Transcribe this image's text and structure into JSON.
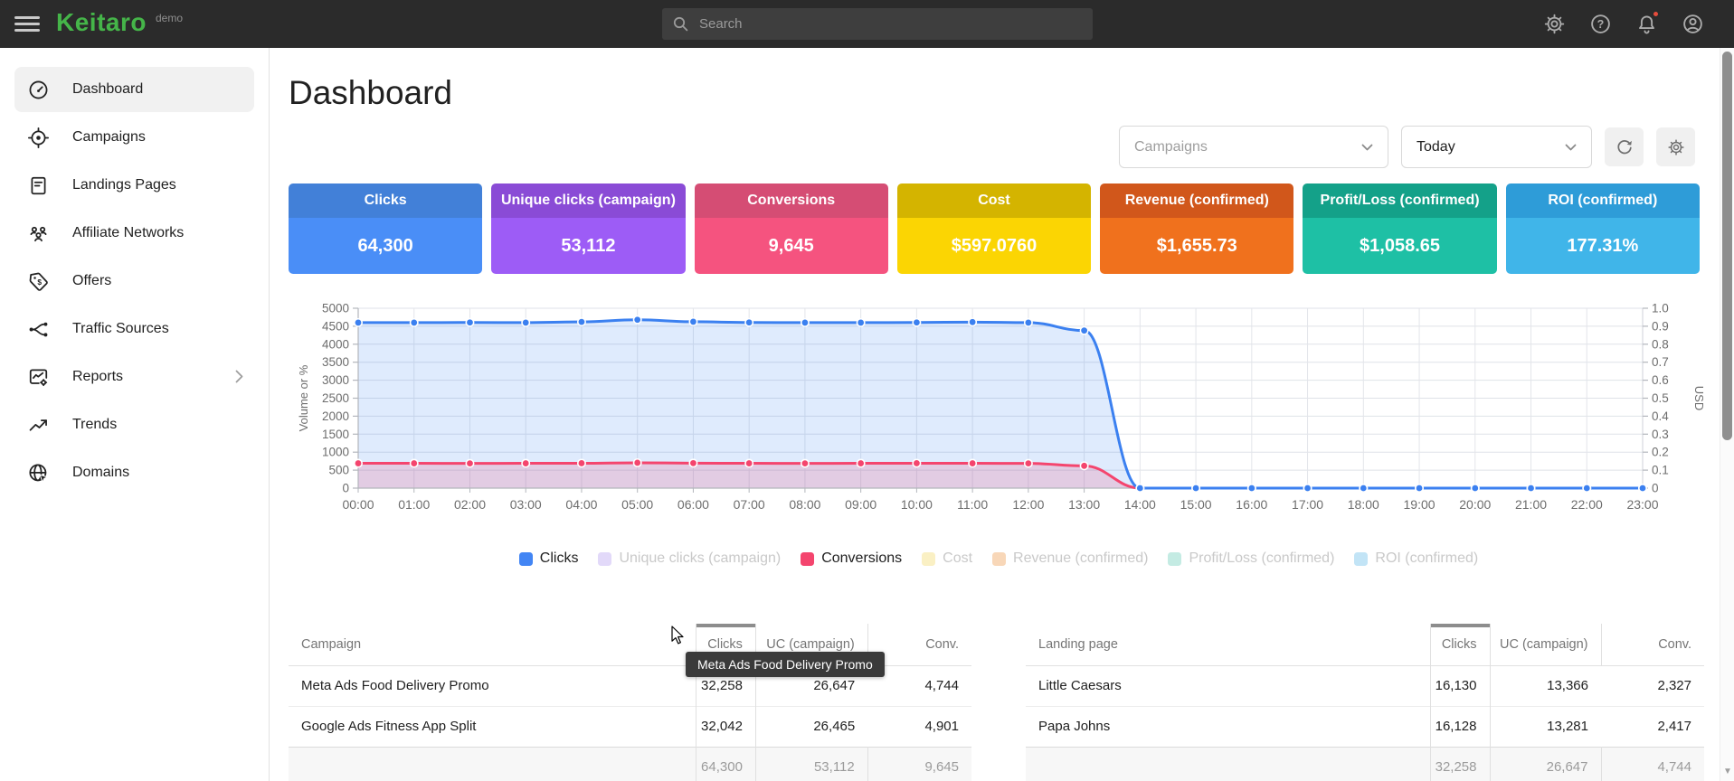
{
  "topbar": {
    "logo": "Keitaro",
    "env": "demo",
    "search_placeholder": "Search",
    "icons": [
      {
        "name": "settings-gear-icon",
        "badge": false
      },
      {
        "name": "help-icon",
        "badge": false
      },
      {
        "name": "notifications-bell-icon",
        "badge": true
      },
      {
        "name": "account-icon",
        "badge": false
      }
    ],
    "badge_color": "#e74c3c"
  },
  "sidebar": {
    "items": [
      {
        "label": "Dashboard",
        "icon": "gauge-icon",
        "active": true,
        "has_submenu": false
      },
      {
        "label": "Campaigns",
        "icon": "target-icon",
        "active": false,
        "has_submenu": false
      },
      {
        "label": "Landings Pages",
        "icon": "document-icon",
        "active": false,
        "has_submenu": false
      },
      {
        "label": "Affiliate Networks",
        "icon": "people-icon",
        "active": false,
        "has_submenu": false
      },
      {
        "label": "Offers",
        "icon": "tag-icon",
        "active": false,
        "has_submenu": false
      },
      {
        "label": "Traffic Sources",
        "icon": "split-icon",
        "active": false,
        "has_submenu": false
      },
      {
        "label": "Reports",
        "icon": "report-chart-icon",
        "active": false,
        "has_submenu": true
      },
      {
        "label": "Trends",
        "icon": "trend-up-icon",
        "active": false,
        "has_submenu": false
      },
      {
        "label": "Domains",
        "icon": "globe-icon",
        "active": false,
        "has_submenu": false
      }
    ]
  },
  "header": {
    "title": "Dashboard",
    "scope_filter": "Campaigns",
    "period_filter": "Today"
  },
  "cards": [
    {
      "label": "Clicks",
      "value": "64,300",
      "header_color": "#4280d8",
      "body_color": "#4a8ef7"
    },
    {
      "label": "Unique clicks (campaign)",
      "value": "53,112",
      "header_color": "#8a4bd6",
      "body_color": "#9d5cf6"
    },
    {
      "label": "Conversions",
      "value": "9,645",
      "header_color": "#d54d74",
      "body_color": "#f5537f"
    },
    {
      "label": "Cost",
      "value": "$597.0760",
      "header_color": "#d4b400",
      "body_color": "#fbd503"
    },
    {
      "label": "Revenue (confirmed)",
      "value": "$1,655.73",
      "header_color": "#d1571b",
      "body_color": "#f0711d"
    },
    {
      "label": "Profit/Loss (confirmed)",
      "value": "$1,058.65",
      "header_color": "#14a189",
      "body_color": "#1ec0a5"
    },
    {
      "label": "ROI (confirmed)",
      "value": "177.31%",
      "header_color": "#2e9cd8",
      "body_color": "#40b5e9"
    }
  ],
  "chart_data": {
    "type": "area",
    "x": [
      "00:00",
      "01:00",
      "02:00",
      "03:00",
      "04:00",
      "05:00",
      "06:00",
      "07:00",
      "08:00",
      "09:00",
      "10:00",
      "11:00",
      "12:00",
      "13:00",
      "14:00",
      "15:00",
      "16:00",
      "17:00",
      "18:00",
      "19:00",
      "20:00",
      "21:00",
      "22:00",
      "23:00"
    ],
    "series": [
      {
        "name": "Clicks",
        "color": "#3b80f0",
        "fill": "rgba(59,128,240,0.16)",
        "values": [
          4600,
          4600,
          4605,
          4600,
          4620,
          4680,
          4625,
          4605,
          4600,
          4600,
          4605,
          4615,
          4600,
          4380,
          0,
          0,
          0,
          0,
          0,
          0,
          0,
          0,
          0,
          0
        ]
      },
      {
        "name": "Conversions",
        "color": "#f4456e",
        "fill": "rgba(244,69,110,0.18)",
        "values": [
          690,
          690,
          688,
          690,
          692,
          705,
          695,
          690,
          688,
          690,
          692,
          690,
          688,
          620,
          0,
          0,
          0,
          0,
          0,
          0,
          0,
          0,
          0,
          0
        ]
      }
    ],
    "left_axis": {
      "label": "Volume or %",
      "min": 0,
      "max": 5000,
      "step": 500
    },
    "right_axis": {
      "label": "USD",
      "min": 0,
      "max": 1.0,
      "step": 0.1
    },
    "grid": true,
    "legend_position": "bottom",
    "legend": [
      {
        "label": "Clicks",
        "color": "#4285f4",
        "active": true
      },
      {
        "label": "Unique clicks (campaign)",
        "color": "#e2d9f9",
        "active": false
      },
      {
        "label": "Conversions",
        "color": "#f4456e",
        "active": true
      },
      {
        "label": "Cost",
        "color": "#faf0c4",
        "active": false
      },
      {
        "label": "Revenue (confirmed)",
        "color": "#f8d7b8",
        "active": false
      },
      {
        "label": "Profit/Loss (confirmed)",
        "color": "#c4ebe3",
        "active": false
      },
      {
        "label": "ROI (confirmed)",
        "color": "#c2e4f6",
        "active": false
      }
    ]
  },
  "campaigns_table": {
    "columns": [
      "Campaign",
      "Clicks",
      "UC (campaign)",
      "Conv."
    ],
    "sorted_column": "Clicks",
    "rows": [
      [
        "Meta Ads Food Delivery Promo",
        "32,258",
        "26,647",
        "4,744"
      ],
      [
        "Google Ads Fitness App Split",
        "32,042",
        "26,465",
        "4,901"
      ]
    ],
    "totals": [
      "",
      "64,300",
      "53,112",
      "9,645"
    ]
  },
  "landings_table": {
    "columns": [
      "Landing page",
      "Clicks",
      "UC (campaign)",
      "Conv."
    ],
    "sorted_column": "Clicks",
    "rows": [
      [
        "Little Caesars",
        "16,130",
        "13,366",
        "2,327"
      ],
      [
        "Papa Johns",
        "16,128",
        "13,281",
        "2,417"
      ]
    ],
    "totals": [
      "",
      "32,258",
      "26,647",
      "4,744"
    ]
  },
  "tooltip": {
    "text": "Meta Ads Food Delivery Promo"
  }
}
